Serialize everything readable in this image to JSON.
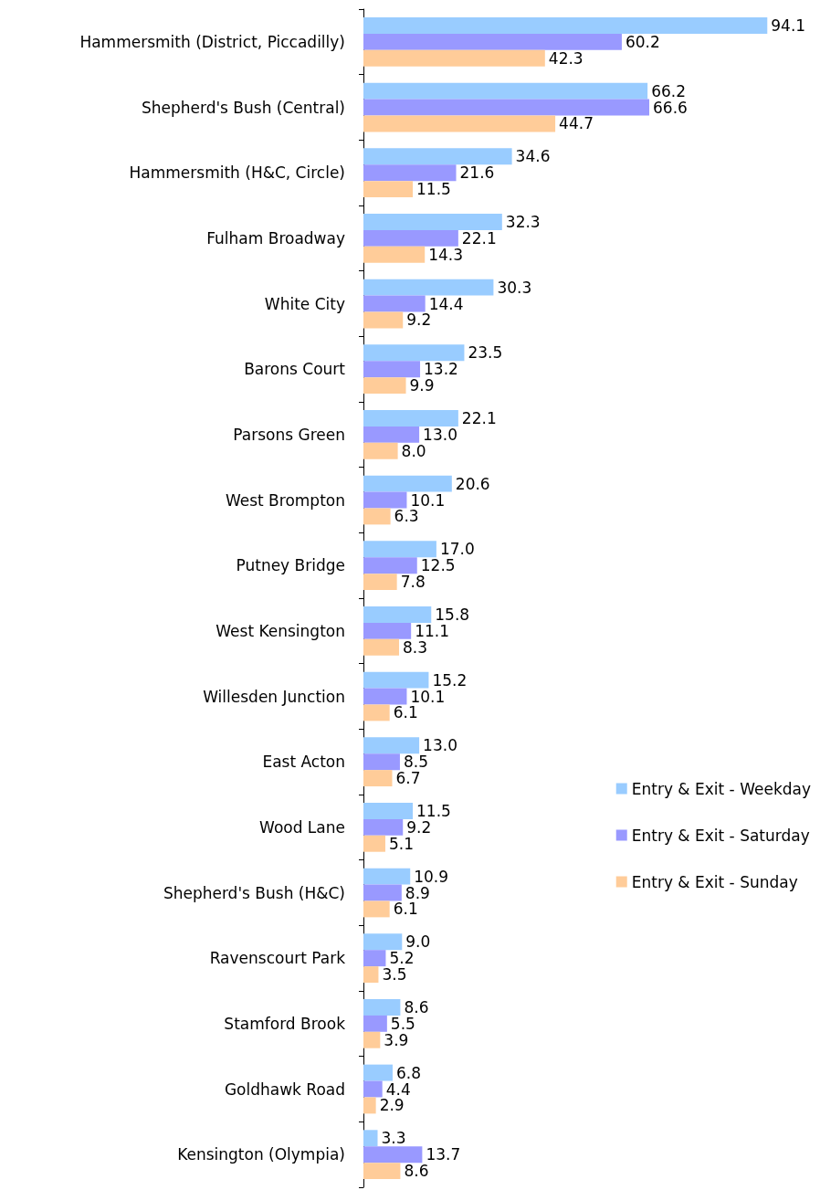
{
  "chart_data": {
    "type": "bar",
    "orientation": "horizontal",
    "legend": "right",
    "categories": [
      "Hammersmith (District, Piccadilly)",
      "Shepherd's Bush (Central)",
      "Hammersmith (H&C, Circle)",
      "Fulham Broadway",
      "White City",
      "Barons Court",
      "Parsons Green",
      "West Brompton",
      "Putney Bridge",
      "West Kensington",
      "Willesden Junction",
      "East Acton",
      "Wood Lane",
      "Shepherd's Bush (H&C)",
      "Ravenscourt Park",
      "Stamford Brook",
      "Goldhawk Road",
      "Kensington (Olympia)"
    ],
    "series": [
      {
        "name": "Entry & Exit - Weekday",
        "color": "#99ccff",
        "values": [
          94.1,
          66.2,
          34.6,
          32.3,
          30.3,
          23.5,
          22.1,
          20.6,
          17.0,
          15.8,
          15.2,
          13.0,
          11.5,
          10.9,
          9.0,
          8.6,
          6.8,
          3.3
        ],
        "value_labels": [
          "94.1",
          "66.2",
          "34.6",
          "32.3",
          "30.3",
          "23.5",
          "22.1",
          "20.6",
          "17.0",
          "15.8",
          "15.2",
          "13.0",
          "11.5",
          "10.9",
          "9.0",
          "8.6",
          "6.8",
          "3.3"
        ]
      },
      {
        "name": "Entry & Exit - Saturday",
        "color": "#9999ff",
        "values": [
          60.2,
          66.6,
          21.6,
          22.1,
          14.4,
          13.2,
          13.0,
          10.1,
          12.5,
          11.1,
          10.1,
          8.5,
          9.2,
          8.9,
          5.2,
          5.5,
          4.4,
          13.7
        ],
        "value_labels": [
          "60.2",
          "66.6",
          "21.6",
          "22.1",
          "14.4",
          "13.2",
          "13.0",
          "10.1",
          "12.5",
          "11.1",
          "10.1",
          "8.5",
          "9.2",
          "8.9",
          "5.2",
          "5.5",
          "4.4",
          "13.7"
        ]
      },
      {
        "name": "Entry & Exit - Sunday",
        "color": "#ffcc99",
        "values": [
          42.3,
          44.7,
          11.5,
          14.3,
          9.2,
          9.9,
          8.0,
          6.3,
          7.8,
          8.3,
          6.1,
          6.7,
          5.1,
          6.1,
          3.5,
          3.9,
          2.9,
          8.6
        ],
        "value_labels": [
          "42.3",
          "44.7",
          "11.5",
          "14.3",
          "9.2",
          "9.9",
          "8.0",
          "6.3",
          "7.8",
          "8.3",
          "6.1",
          "6.7",
          "5.1",
          "6.1",
          "3.5",
          "3.9",
          "2.9",
          "8.6"
        ]
      }
    ]
  }
}
